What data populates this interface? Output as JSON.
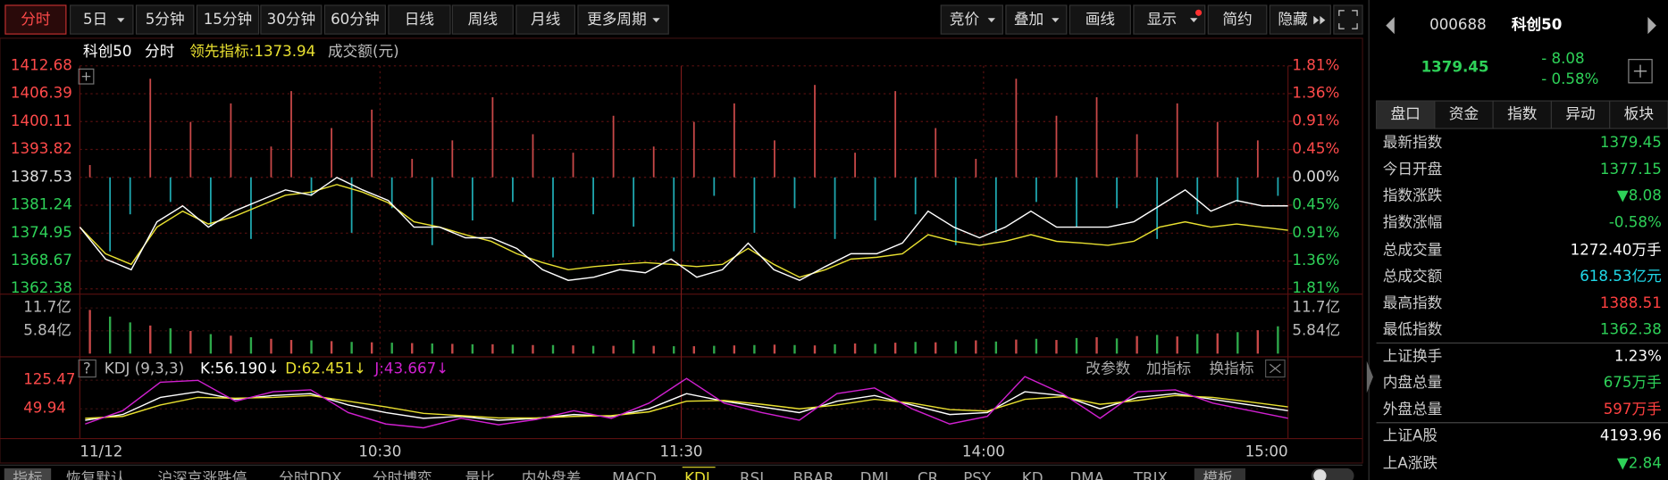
{
  "toolbar": {
    "periods": [
      "分时",
      "5日",
      "5分钟",
      "15分钟",
      "30分钟",
      "60分钟",
      "日线",
      "周线",
      "月线",
      "更多周期"
    ],
    "tools": [
      "竞价",
      "叠加",
      "画线",
      "显示",
      "简约",
      "隐藏"
    ]
  },
  "chart": {
    "legend": [
      "科创50",
      "分时",
      "领先指标:1373.94",
      "成交额(元)"
    ],
    "price_ylim": [
      1362.38,
      1412.68
    ],
    "price_ticks": [
      1412.68,
      1406.39,
      1400.11,
      1393.82,
      1387.53,
      1381.24,
      1374.95,
      1368.67,
      1362.38
    ],
    "pct_ylim": [
      -1.81,
      1.81
    ],
    "pct_ticks": [
      {
        "value": 1.81,
        "label": "1.81%"
      },
      {
        "value": 1.36,
        "label": "1.36%"
      },
      {
        "value": 0.91,
        "label": "0.91%"
      },
      {
        "value": 0.45,
        "label": "0.45%"
      },
      {
        "value": 0,
        "label": "0.00%"
      },
      {
        "value": -0.45,
        "label": "0.45%"
      },
      {
        "value": -0.91,
        "label": "0.91%"
      },
      {
        "value": -1.36,
        "label": "1.36%"
      },
      {
        "value": -1.81,
        "label": "1.81%"
      }
    ],
    "price": [
      1376.3,
      1369.1,
      1366.7,
      1377.5,
      1381.1,
      1376.3,
      1379.9,
      1382.3,
      1384.7,
      1383.5,
      1387.5,
      1384.7,
      1382.3,
      1376.3,
      1376.3,
      1373.9,
      1373.9,
      1371.5,
      1366.7,
      1364.3,
      1365.0,
      1366.7,
      1366.0,
      1369.1,
      1365.0,
      1366.7,
      1372.7,
      1366.7,
      1364.3,
      1367.4,
      1370.3,
      1370.3,
      1372.7,
      1379.9,
      1376.3,
      1373.9,
      1376.3,
      1379.9,
      1376.3,
      1376.3,
      1376.3,
      1377.5,
      1381.1,
      1384.7,
      1379.9,
      1382.3,
      1381.1,
      1381.1
    ],
    "lead": [
      1376.3,
      1370.3,
      1367.9,
      1376.3,
      1379.9,
      1377.0,
      1378.7,
      1381.1,
      1383.5,
      1384.2,
      1385.9,
      1384.2,
      1381.8,
      1377.5,
      1376.3,
      1374.6,
      1373.1,
      1370.3,
      1368.3,
      1366.7,
      1367.4,
      1367.9,
      1368.3,
      1367.9,
      1367.4,
      1367.9,
      1371.5,
      1367.9,
      1365.0,
      1366.7,
      1369.1,
      1369.5,
      1370.3,
      1374.6,
      1373.1,
      1372.2,
      1373.1,
      1374.6,
      1373.1,
      1372.7,
      1372.2,
      1373.1,
      1376.3,
      1377.5,
      1376.3,
      1377.0,
      1376.3,
      1375.6
    ],
    "indicator": [
      0.2,
      -1.2,
      -0.6,
      1.6,
      -0.4,
      0.9,
      -0.8,
      1.2,
      -1.0,
      0.5,
      1.4,
      -0.3,
      0.8,
      -0.9,
      1.1,
      -0.5,
      0.3,
      -1.1,
      0.6,
      -0.7,
      1.3,
      -0.4,
      0.7,
      -1.3,
      0.4,
      -0.6,
      1.0,
      -0.8,
      0.5,
      -1.2,
      0.9,
      -0.3,
      1.2,
      -0.9,
      0.6,
      -0.5,
      1.5,
      -1.0,
      0.4,
      -0.7,
      1.4,
      -0.6,
      0.8,
      -1.1,
      0.3,
      -0.9,
      1.6,
      -0.4,
      1.0,
      -0.8,
      1.3,
      -0.5,
      0.7,
      -1.0,
      1.2,
      -0.6,
      0.9,
      -0.4,
      0.6,
      -0.3
    ],
    "volume_ylim": [
      0,
      11.7
    ],
    "volume_ticks": [
      {
        "value": 11.7,
        "label": "11.7亿"
      },
      {
        "value": 5.84,
        "label": "5.84亿"
      }
    ],
    "volume": [
      11.2,
      9.5,
      8.0,
      7.2,
      6.5,
      5.8,
      5.0,
      4.6,
      4.2,
      3.8,
      3.5,
      3.4,
      3.2,
      3.0,
      2.9,
      2.8,
      2.7,
      2.6,
      2.5,
      2.4,
      2.4,
      2.3,
      2.2,
      2.2,
      2.1,
      2.0,
      2.0,
      3.5,
      2.0,
      1.9,
      1.9,
      2.0,
      2.1,
      2.2,
      2.3,
      2.2,
      2.1,
      2.4,
      2.6,
      2.5,
      2.8,
      3.0,
      2.9,
      3.2,
      3.4,
      3.1,
      3.6,
      3.8,
      3.5,
      4.0,
      4.2,
      3.9,
      4.5,
      4.8,
      4.4,
      5.0,
      5.2,
      5.5,
      6.0,
      7.0
    ],
    "kdj_header": [
      "?",
      "KDJ (9,3,3)",
      "K:56.190↓",
      "D:62.451↓",
      "J:43.667↓"
    ],
    "kdj_actions": [
      "改参数",
      "加指标",
      "换指标"
    ],
    "kdj_ylim": [
      -25.6,
      175.8
    ],
    "kdj_ticks": [
      125.47,
      49.94
    ],
    "kdj": [
      {
        "name": "K",
        "color": "#ffffff",
        "values": [
          20,
          35,
          80,
          95,
          75,
          85,
          90,
          60,
          40,
          25,
          30,
          20,
          25,
          35,
          30,
          50,
          90,
          70,
          55,
          40,
          70,
          85,
          60,
          35,
          40,
          95,
          85,
          50,
          80,
          90,
          75,
          60,
          45
        ]
      },
      {
        "name": "D",
        "color": "#e8e030",
        "values": [
          25,
          30,
          60,
          80,
          78,
          80,
          85,
          70,
          55,
          38,
          32,
          26,
          26,
          30,
          32,
          42,
          70,
          72,
          62,
          50,
          60,
          75,
          65,
          48,
          44,
          75,
          82,
          62,
          72,
          85,
          80,
          68,
          55
        ]
      },
      {
        "name": "J",
        "color": "#d020d0",
        "values": [
          10,
          45,
          120,
          125,
          70,
          95,
          100,
          40,
          10,
          0,
          25,
          8,
          22,
          45,
          25,
          65,
          130,
          65,
          40,
          20,
          90,
          105,
          50,
          10,
          30,
          135,
          90,
          25,
          95,
          100,
          65,
          45,
          25
        ]
      }
    ],
    "time_labels": [
      "11/12",
      "10:30",
      "11:30",
      "14:00",
      "15:00"
    ],
    "tabs": [
      "指标",
      "恢复默认",
      "沪深京涨跌停",
      "分时DDX",
      "分时博弈",
      "量比",
      "内外盘差",
      "MACD",
      "KDJ",
      "RSI",
      "BBAR",
      "DMI",
      "CR",
      "PSY",
      "KD",
      "DMA",
      "TRIX",
      "模板"
    ]
  },
  "panel": {
    "code": "000688",
    "name": "科创50",
    "last": "1379.45",
    "change": "- 8.08",
    "pct": "- 0.58%",
    "tabs": [
      "盘口",
      "资金",
      "指数",
      "异动",
      "板块"
    ],
    "rows": [
      {
        "label": "最新指数",
        "value": "1379.45",
        "color": "#2ed158"
      },
      {
        "label": "今日开盘",
        "value": "1377.15",
        "color": "#2ed158"
      },
      {
        "label": "指数涨跌",
        "value": "▼8.08",
        "color": "#2ed158"
      },
      {
        "label": "指数涨幅",
        "value": "-0.58%",
        "color": "#2ed158"
      },
      {
        "label": "总成交量",
        "value": "1272.40万手",
        "color": "#ffffff"
      },
      {
        "label": "总成交额",
        "value": "618.53亿元",
        "color": "#20d8e8"
      },
      {
        "label": "最高指数",
        "value": "1388.51",
        "color": "#ff4040"
      },
      {
        "label": "最低指数",
        "value": "1362.38",
        "color": "#2ed158"
      },
      {
        "label": "上证换手",
        "value": "1.23%",
        "color": "#ffffff"
      },
      {
        "label": "内盘总量",
        "value": "675万手",
        "color": "#2ed158"
      },
      {
        "label": "外盘总量",
        "value": "597万手",
        "color": "#ff4040"
      },
      {
        "label": "上证A股",
        "value": "4193.96",
        "color": "#ffffff"
      },
      {
        "label": "上A涨跌",
        "value": "▼2.84",
        "color": "#2ed158"
      }
    ]
  }
}
